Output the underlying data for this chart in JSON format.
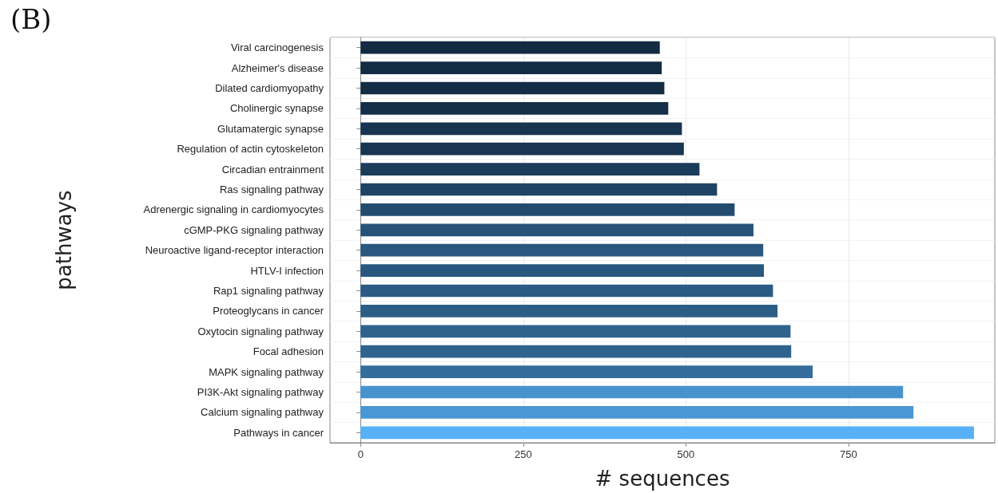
{
  "chart_data": {
    "type": "bar",
    "orientation": "horizontal",
    "title": "(B)",
    "xlabel": "# sequences",
    "ylabel": "pathways",
    "categories": [
      "Viral carcinogenesis",
      "Alzheimer's disease",
      "Dilated cardiomyopathy",
      "Cholinergic synapse",
      "Glutamatergic synapse",
      "Regulation of actin cytoskeleton",
      "Circadian entrainment",
      "Ras signaling pathway",
      "Adrenergic signaling in cardiomyocytes",
      "cGMP-PKG signaling pathway",
      "Neuroactive ligand-receptor interaction",
      "HTLV-I infection",
      "Rap1 signaling pathway",
      "Proteoglycans in cancer",
      "Oxytocin signaling pathway",
      "Focal adhesion",
      "MAPK signaling pathway",
      "PI3K-Akt signaling pathway",
      "Calcium signaling pathway",
      "Pathways in cancer"
    ],
    "values": [
      460,
      463,
      467,
      473,
      494,
      497,
      521,
      548,
      575,
      604,
      619,
      620,
      634,
      641,
      661,
      662,
      695,
      834,
      850,
      943
    ],
    "colors": [
      "#132b43",
      "#132c44",
      "#142d45",
      "#152f48",
      "#183450",
      "#183551",
      "#1b3c5a",
      "#1f4364",
      "#234b6e",
      "#275379",
      "#29577e",
      "#29577f",
      "#2b5b84",
      "#2c5d86",
      "#2f638e",
      "#2f638f",
      "#346c9b",
      "#4793ce",
      "#4997d4",
      "#56b1f7"
    ],
    "xlim": [
      -47,
      975
    ],
    "xticks": [
      0,
      250,
      500,
      750
    ],
    "grid": true
  }
}
